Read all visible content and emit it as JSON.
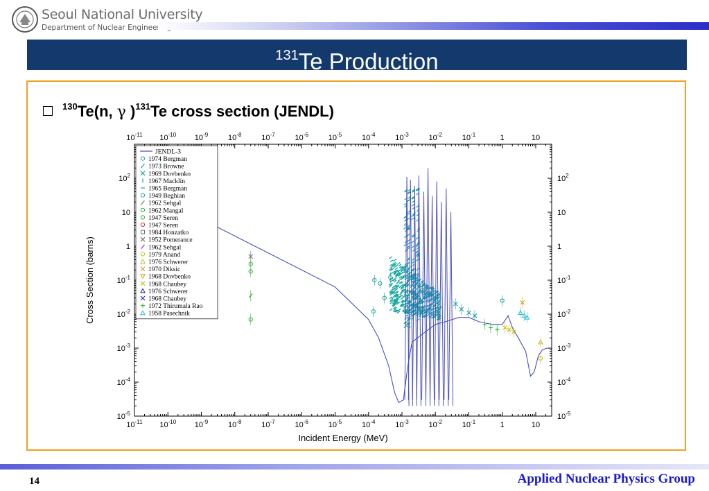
{
  "header": {
    "university": "Seoul National University",
    "department": "Department of Nuclear Engineering",
    "title_sup": "131",
    "title_main": "Te Production"
  },
  "bullet": {
    "sup1": "130",
    "part1": "Te(n, ",
    "gamma": "γ",
    "part2": " )",
    "sup2": "131",
    "part3": "Te cross section (JENDL)"
  },
  "footer": {
    "page_number": "14",
    "group": "Applied Nuclear Physics Group"
  },
  "colors": {
    "banner": "#143a6d",
    "frame": "#f2a01e",
    "jendl": "#4a4fc0",
    "group_text": "#1a1ad0"
  },
  "chart_data": {
    "type": "scatter",
    "xlabel": "Incident Energy (MeV)",
    "ylabel": "Cross Section (barns)",
    "xscale": "log",
    "yscale": "log",
    "xlim": [
      1e-11,
      30
    ],
    "ylim": [
      1e-05,
      1000
    ],
    "x_ticks": [
      {
        "base": "10",
        "exp": "-11"
      },
      {
        "base": "10",
        "exp": "-10"
      },
      {
        "base": "10",
        "exp": "-9"
      },
      {
        "base": "10",
        "exp": "-8"
      },
      {
        "base": "10",
        "exp": "-7"
      },
      {
        "base": "10",
        "exp": "-6"
      },
      {
        "base": "10",
        "exp": "-5"
      },
      {
        "base": "10",
        "exp": "-4"
      },
      {
        "base": "10",
        "exp": "-3"
      },
      {
        "base": "10",
        "exp": "-2"
      },
      {
        "base": "10",
        "exp": "-1"
      },
      {
        "base": "1",
        "exp": ""
      },
      {
        "base": "10",
        "exp": ""
      }
    ],
    "y_ticks": [
      {
        "base": "10",
        "exp": "2"
      },
      {
        "base": "10",
        "exp": ""
      },
      {
        "base": "1",
        "exp": ""
      },
      {
        "base": "10",
        "exp": "-1"
      },
      {
        "base": "10",
        "exp": "-2"
      },
      {
        "base": "10",
        "exp": "-3"
      },
      {
        "base": "10",
        "exp": "-4"
      },
      {
        "base": "10",
        "exp": "-5"
      }
    ],
    "legend_position": "top-left",
    "legend": [
      {
        "name": "JENDL-3",
        "marker": "line",
        "color": "#4a4fc0"
      },
      {
        "name": "1974 Bergman",
        "marker": "o",
        "color": "#20a0a0"
      },
      {
        "name": "1973 Browne",
        "marker": "/",
        "color": "#20a0a0"
      },
      {
        "name": "1969 Dovbenko",
        "marker": "x",
        "color": "#20a0a0"
      },
      {
        "name": "1967 Macklin",
        "marker": "|",
        "color": "#20a0a0"
      },
      {
        "name": "1965 Bergman",
        "marker": "-",
        "color": "#20a0a0"
      },
      {
        "name": "1949 Beghian",
        "marker": "o",
        "color": "#20a0a0"
      },
      {
        "name": "1962 Sehgal",
        "marker": "\\",
        "color": "#30b030"
      },
      {
        "name": "1962 Mangal",
        "marker": "o",
        "color": "#30b030"
      },
      {
        "name": "1947 Seren",
        "marker": "o",
        "color": "#30b030"
      },
      {
        "name": "1947 Seren",
        "marker": "o",
        "color": "#c03030"
      },
      {
        "name": "1984 Honzatko",
        "marker": "s",
        "color": "#707070"
      },
      {
        "name": "1952 Pomerance",
        "marker": "*",
        "color": "#707070"
      },
      {
        "name": "1962 Sehgal",
        "marker": "\\",
        "color": "#b020b0"
      },
      {
        "name": "1979 Anand",
        "marker": "d",
        "color": "#c0c020"
      },
      {
        "name": "1976 Schwerer",
        "marker": "^",
        "color": "#c0c020"
      },
      {
        "name": "1970 Diksic",
        "marker": "x",
        "color": "#d0a020"
      },
      {
        "name": "1968 Dovbenko",
        "marker": "v",
        "color": "#d0a020"
      },
      {
        "name": "1968 Chaubey",
        "marker": "x",
        "color": "#c0c020"
      },
      {
        "name": "1976 Schwerer",
        "marker": "^",
        "color": "#2020c0"
      },
      {
        "name": "1968 Chaubey",
        "marker": "x",
        "color": "#2020c0"
      },
      {
        "name": "1972 Thirumala Rao",
        "marker": "+",
        "color": "#30c030"
      },
      {
        "name": "1958 Pasechnik",
        "marker": "^",
        "color": "#30c0d0"
      }
    ],
    "jendl_curve": [
      [
        1e-11,
        60
      ],
      [
        1e-10,
        20
      ],
      [
        1e-09,
        6.3
      ],
      [
        1e-08,
        2.0
      ],
      [
        1e-07,
        0.63
      ],
      [
        1e-06,
        0.2
      ],
      [
        1e-05,
        0.063
      ],
      [
        3e-05,
        0.022
      ],
      [
        0.0001,
        0.007
      ],
      [
        0.0002,
        0.002
      ],
      [
        0.0004,
        0.0003
      ],
      [
        0.0006,
        5e-05
      ],
      [
        0.0008,
        2.5e-05
      ],
      [
        0.0011,
        3e-05
      ],
      [
        0.0015,
        0.0003
      ],
      [
        0.002,
        0.0015
      ],
      [
        0.005,
        0.003
      ],
      [
        0.01,
        0.005
      ],
      [
        0.02,
        0.006
      ],
      [
        0.05,
        0.008
      ],
      [
        0.1,
        0.008
      ],
      [
        0.2,
        0.006
      ],
      [
        0.5,
        0.005
      ],
      [
        1,
        0.005
      ],
      [
        1.5,
        0.009
      ],
      [
        2,
        0.004
      ],
      [
        3,
        0.002
      ],
      [
        5,
        0.0008
      ],
      [
        7,
        0.00015
      ],
      [
        9,
        0.0002
      ],
      [
        12,
        0.0006
      ],
      [
        16,
        0.0009
      ],
      [
        22,
        0.001
      ]
    ],
    "resonances": [
      {
        "x": 0.0014,
        "ymax": 110
      },
      {
        "x": 0.0018,
        "ymax": 90
      },
      {
        "x": 0.0024,
        "ymax": 60
      },
      {
        "x": 0.0032,
        "ymax": 120
      },
      {
        "x": 0.0045,
        "ymax": 40
      },
      {
        "x": 0.006,
        "ymax": 200
      },
      {
        "x": 0.008,
        "ymax": 30
      },
      {
        "x": 0.011,
        "ymax": 80
      },
      {
        "x": 0.015,
        "ymax": 20
      },
      {
        "x": 0.021,
        "ymax": 50
      },
      {
        "x": 0.029,
        "ymax": 10
      }
    ],
    "points": [
      {
        "series": "1962 Mangal",
        "x": 3e-08,
        "y": 0.3
      },
      {
        "series": "1962 Mangal",
        "x": 3e-08,
        "y": 0.18
      },
      {
        "series": "1952 Pomerance",
        "x": 3e-08,
        "y": 0.5
      },
      {
        "series": "1962 Sehgal",
        "x": 3e-08,
        "y": 0.035
      },
      {
        "series": "1947 Seren",
        "x": 3e-08,
        "y": 0.007
      },
      {
        "series": "1974 Bergman",
        "x": 0.00015,
        "y": 0.1
      },
      {
        "series": "1974 Bergman",
        "x": 0.00022,
        "y": 0.08
      },
      {
        "series": "1974 Bergman",
        "x": 0.0003,
        "y": 0.03
      },
      {
        "series": "1974 Bergman",
        "x": 0.00045,
        "y": 0.12
      },
      {
        "series": "1974 Bergman",
        "x": 0.00014,
        "y": 0.012
      },
      {
        "series": "1973 Browne",
        "x": 0.0015,
        "y": 0.3
      },
      {
        "series": "1973 Browne",
        "x": 0.002,
        "y": 0.12
      },
      {
        "series": "1973 Browne",
        "x": 0.003,
        "y": 0.06
      },
      {
        "series": "1973 Browne",
        "x": 0.004,
        "y": 0.05
      },
      {
        "series": "1973 Browne",
        "x": 0.006,
        "y": 0.04
      },
      {
        "series": "1973 Browne",
        "x": 0.009,
        "y": 0.03
      },
      {
        "series": "1973 Browne",
        "x": 0.013,
        "y": 0.025
      },
      {
        "series": "1969 Dovbenko",
        "x": 0.04,
        "y": 0.02
      },
      {
        "series": "1969 Dovbenko",
        "x": 0.06,
        "y": 0.014
      },
      {
        "series": "1969 Dovbenko",
        "x": 0.1,
        "y": 0.011
      },
      {
        "series": "1969 Dovbenko",
        "x": 0.15,
        "y": 0.009
      },
      {
        "series": "1972 Thirumala Rao",
        "x": 0.3,
        "y": 0.005
      },
      {
        "series": "1972 Thirumala Rao",
        "x": 0.45,
        "y": 0.004
      },
      {
        "series": "1972 Thirumala Rao",
        "x": 0.7,
        "y": 0.0035
      },
      {
        "series": "1968 Chaubey",
        "x": 1.2,
        "y": 0.004
      },
      {
        "series": "1968 Chaubey",
        "x": 1.6,
        "y": 0.0035
      },
      {
        "series": "1968 Chaubey",
        "x": 2.2,
        "y": 0.003
      },
      {
        "series": "1974 Bergman",
        "x": 1.0,
        "y": 0.025
      },
      {
        "series": "1970 Diksic",
        "x": 4,
        "y": 0.022
      },
      {
        "series": "1958 Pasechnik",
        "x": 3.5,
        "y": 0.011
      },
      {
        "series": "1958 Pasechnik",
        "x": 4.5,
        "y": 0.009
      },
      {
        "series": "1958 Pasechnik",
        "x": 5.5,
        "y": 0.008
      },
      {
        "series": "1976 Schwerer",
        "x": 14,
        "y": 0.0015
      },
      {
        "series": "1979 Anand",
        "x": 14,
        "y": 0.0005
      }
    ]
  }
}
